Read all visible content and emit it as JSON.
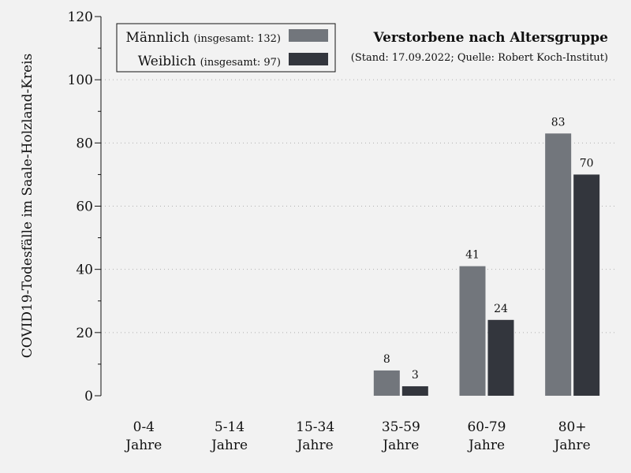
{
  "chart_data": {
    "type": "bar",
    "title": "Verstorbene nach Altersgruppe",
    "subtitle": "(Stand: 17.09.2022; Quelle: Robert Koch-Institut)",
    "ylabel": "COVID19-Todesfälle im Saale-Holzland-Kreis",
    "xlabel": "",
    "ylim": [
      0,
      120
    ],
    "yticks": [
      0,
      20,
      40,
      60,
      80,
      100,
      120
    ],
    "categories": [
      [
        "0-4",
        "Jahre"
      ],
      [
        "5-14",
        "Jahre"
      ],
      [
        "15-34",
        "Jahre"
      ],
      [
        "35-59",
        "Jahre"
      ],
      [
        "60-79",
        "Jahre"
      ],
      [
        "80+",
        "Jahre"
      ]
    ],
    "series": [
      {
        "name": "Männlich",
        "total_text": "(insgesamt: 132)",
        "color": "#72767c",
        "values": [
          0,
          0,
          0,
          8,
          41,
          83
        ]
      },
      {
        "name": "Weiblich",
        "total_text": "(insgesamt: 97)",
        "color": "#33363d",
        "values": [
          0,
          0,
          0,
          3,
          24,
          70
        ]
      }
    ],
    "grid": "horizontal dotted",
    "legend_position": "top-left"
  }
}
